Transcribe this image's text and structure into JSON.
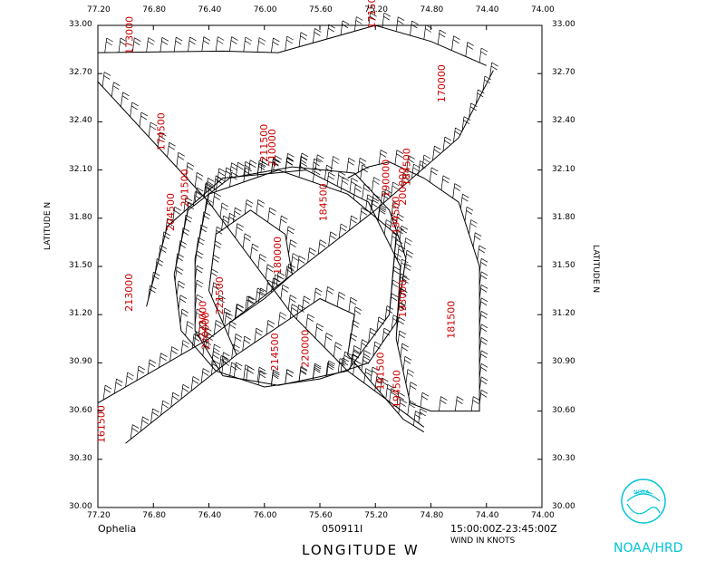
{
  "storm": "Ophelia",
  "date": "050911I",
  "time_range": "15:00:00Z-23:45:00Z",
  "xlabel": "LONGITUDE  W",
  "ylabel": "LATITUDE  N",
  "wind_note": "WIND IN KNOTS",
  "agency": "NOAA/HRD",
  "logo_text": "NOAA",
  "colors": {
    "axes": "#000000",
    "labels": "#cc0000",
    "logo": "#00c4d6"
  },
  "chart_data": {
    "type": "map",
    "xlim": [
      77.2,
      74.0
    ],
    "ylim": [
      30.0,
      33.0
    ],
    "x_ticks": [
      "77.20",
      "76.80",
      "76.40",
      "76.00",
      "75.60",
      "75.20",
      "74.80",
      "74.40",
      "74.00"
    ],
    "y_ticks": [
      "30.00",
      "30.30",
      "30.60",
      "30.90",
      "31.20",
      "31.50",
      "31.80",
      "32.10",
      "32.40",
      "32.70",
      "33.00"
    ],
    "time_labels": [
      {
        "text": "173000",
        "lon": 76.95,
        "lat": 32.82
      },
      {
        "text": "171500",
        "lon": 75.2,
        "lat": 32.98
      },
      {
        "text": "170000",
        "lon": 74.7,
        "lat": 32.52
      },
      {
        "text": "174500",
        "lon": 76.72,
        "lat": 32.22
      },
      {
        "text": "184500",
        "lon": 74.95,
        "lat": 32.0
      },
      {
        "text": "211500",
        "lon": 75.98,
        "lat": 32.15
      },
      {
        "text": "210000",
        "lon": 75.92,
        "lat": 32.12
      },
      {
        "text": "190000",
        "lon": 75.1,
        "lat": 31.93
      },
      {
        "text": "200000",
        "lon": 74.98,
        "lat": 31.88
      },
      {
        "text": "201500",
        "lon": 76.55,
        "lat": 31.87
      },
      {
        "text": "204500",
        "lon": 76.65,
        "lat": 31.72
      },
      {
        "text": "184500",
        "lon": 75.55,
        "lat": 31.78
      },
      {
        "text": "194500",
        "lon": 75.03,
        "lat": 31.7
      },
      {
        "text": "180000",
        "lon": 75.88,
        "lat": 31.45
      },
      {
        "text": "213000",
        "lon": 76.95,
        "lat": 31.22
      },
      {
        "text": "221500",
        "lon": 76.3,
        "lat": 31.2
      },
      {
        "text": "223000",
        "lon": 76.42,
        "lat": 31.05
      },
      {
        "text": "220000",
        "lon": 76.4,
        "lat": 30.98
      },
      {
        "text": "193000",
        "lon": 74.98,
        "lat": 31.18
      },
      {
        "text": "181500",
        "lon": 74.63,
        "lat": 31.05
      },
      {
        "text": "214500",
        "lon": 75.9,
        "lat": 30.85
      },
      {
        "text": "220000",
        "lon": 75.68,
        "lat": 30.87
      },
      {
        "text": "191500",
        "lon": 75.14,
        "lat": 30.73
      },
      {
        "text": "194500",
        "lon": 75.02,
        "lat": 30.62
      },
      {
        "text": "161500",
        "lon": 77.15,
        "lat": 30.4
      }
    ],
    "tracks": [
      [
        [
          77.2,
          32.83
        ],
        [
          76.3,
          32.84
        ],
        [
          75.9,
          32.83
        ],
        [
          75.2,
          33.0
        ],
        [
          74.8,
          32.9
        ],
        [
          74.4,
          32.75
        ]
      ],
      [
        [
          77.2,
          32.65
        ],
        [
          76.4,
          31.9
        ],
        [
          75.8,
          31.2
        ],
        [
          75.4,
          30.85
        ],
        [
          74.85,
          30.5
        ]
      ],
      [
        [
          77.2,
          30.65
        ],
        [
          76.4,
          31.05
        ],
        [
          75.8,
          31.45
        ],
        [
          75.2,
          31.85
        ],
        [
          74.6,
          32.3
        ],
        [
          74.35,
          32.72
        ]
      ],
      [
        [
          77.0,
          30.4
        ],
        [
          76.2,
          30.95
        ],
        [
          75.6,
          31.3
        ],
        [
          75.35,
          31.2
        ],
        [
          75.4,
          30.95
        ],
        [
          75.0,
          30.55
        ],
        [
          74.85,
          30.47
        ]
      ],
      [
        [
          76.65,
          31.45
        ],
        [
          76.55,
          31.85
        ],
        [
          76.25,
          32.05
        ],
        [
          75.8,
          32.12
        ],
        [
          75.35,
          32.08
        ],
        [
          75.1,
          31.85
        ],
        [
          74.98,
          31.55
        ],
        [
          75.05,
          31.15
        ],
        [
          75.25,
          30.9
        ],
        [
          75.6,
          30.8
        ],
        [
          76.0,
          30.75
        ],
        [
          76.35,
          30.85
        ],
        [
          76.6,
          31.1
        ],
        [
          76.65,
          31.45
        ]
      ],
      [
        [
          76.5,
          31.55
        ],
        [
          76.4,
          31.95
        ],
        [
          75.9,
          32.1
        ],
        [
          75.4,
          31.95
        ],
        [
          75.05,
          31.7
        ],
        [
          75.1,
          31.2
        ],
        [
          75.4,
          30.85
        ],
        [
          75.9,
          30.76
        ],
        [
          76.3,
          30.82
        ],
        [
          76.5,
          31.1
        ],
        [
          76.5,
          31.55
        ]
      ],
      [
        [
          76.85,
          31.25
        ],
        [
          76.7,
          31.75
        ],
        [
          76.3,
          32.05
        ],
        [
          75.7,
          32.1
        ],
        [
          75.25,
          31.9
        ],
        [
          75.02,
          31.5
        ],
        [
          75.05,
          31.05
        ],
        [
          74.95,
          30.65
        ],
        [
          74.8,
          30.6
        ],
        [
          74.45,
          30.6
        ],
        [
          74.45,
          31.5
        ],
        [
          74.6,
          31.9
        ],
        [
          74.85,
          32.05
        ],
        [
          75.1,
          32.15
        ],
        [
          75.25,
          32.12
        ],
        [
          75.4,
          32.05
        ]
      ],
      [
        [
          76.2,
          30.95
        ],
        [
          76.4,
          31.35
        ],
        [
          76.35,
          31.7
        ],
        [
          76.1,
          31.85
        ],
        [
          75.85,
          31.7
        ],
        [
          75.8,
          31.45
        ],
        [
          76.0,
          31.3
        ],
        [
          76.25,
          31.15
        ]
      ]
    ]
  }
}
